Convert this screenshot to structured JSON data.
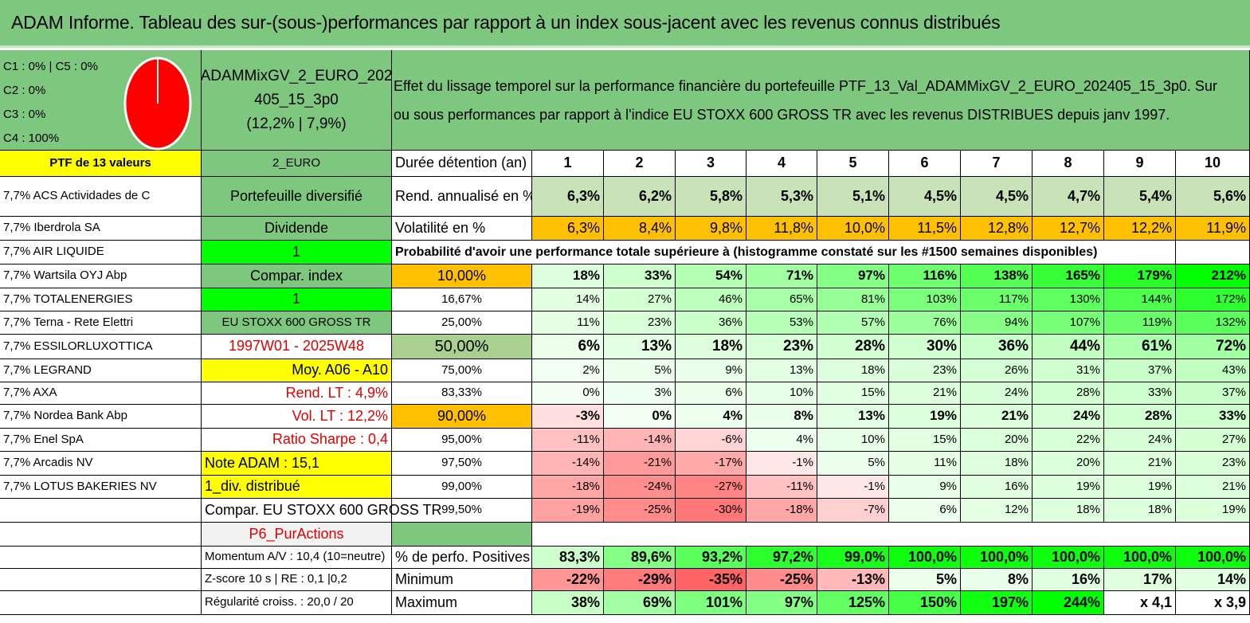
{
  "title": "ADAM Informe. Tableau des sur-(sous-)performances par rapport à un index sous-jacent avec les revenus connus distribués",
  "legend": [
    "C1 : 0% | C5 : 0%",
    "C2 : 0%",
    "C3 : 0%",
    "C4 : 100%"
  ],
  "portfolio": {
    "name1": "ADAMMixGV_2_EURO_202",
    "name2": "405_15_3p0",
    "perf": "(12,2% | 7,9%)"
  },
  "description": [
    "Effet du lissage temporel sur la performance financière du portefeuille PTF_13_Val_ADAMMixGV_2_EURO_202405_15_3p0. Sur",
    "ou sous performances par rapport à l'indice EU STOXX 600 GROSS TR avec les revenus DISTRIBUES depuis janv 1997."
  ],
  "colors": {
    "header_green": "#7dc77f",
    "yellow": "#ffff00",
    "bright_green": "#00ff00",
    "orange": "#ffc000",
    "red_text": "#e00000"
  },
  "holdings_header": "PTF de 13 valeurs",
  "holdings": [
    "7,7% ACS Actividades de C",
    "7,7% Iberdrola SA",
    "7,7% AIR LIQUIDE",
    "7,7% Wartsila OYJ Abp",
    "7,7% TOTALENERGIES",
    "7,7% Terna - Rete Elettri",
    "7,7% ESSILORLUXOTTICA",
    "7,7% LEGRAND",
    "7,7% AXA",
    "7,7% Nordea Bank Abp",
    "7,7% Enel SpA",
    "7,7% Arcadis NV",
    "7,7% LOTUS BAKERIES NV",
    "",
    "",
    "",
    "",
    ""
  ],
  "info": [
    "2_EURO",
    "Portefeuille diversifié",
    "Dividende",
    "1",
    "Compar. index",
    "1",
    "EU STOXX 600 GROSS TR",
    "1997W01 - 2025W48",
    "Moy. A06 - A10",
    "Rend. LT : 4,9%",
    "Vol. LT : 12,2%",
    "Ratio Sharpe : 0,4",
    "Note ADAM : 15,1",
    "1_div. distribué",
    "Compar. EU STOXX 600 GROSS TR",
    "P6_PurActions",
    "Momentum A/V : 10,4 (10=neutre)",
    "Z-score 10 s | RE : 0,1 |0,2",
    "Régularité croiss. : 20,0 / 20"
  ],
  "table": {
    "duration_label": "Durée détention (an)",
    "years": [
      "1",
      "2",
      "3",
      "4",
      "5",
      "6",
      "7",
      "8",
      "9",
      "10"
    ],
    "return_label": "Rend. annualisé en %",
    "returns": [
      "6,3%",
      "6,2%",
      "5,8%",
      "5,3%",
      "5,1%",
      "4,5%",
      "4,5%",
      "4,7%",
      "5,4%",
      "5,6%"
    ],
    "volatility_label": "Volatilité en %",
    "volatility": [
      "6,3%",
      "8,4%",
      "9,8%",
      "11,8%",
      "10,0%",
      "11,5%",
      "12,8%",
      "12,7%",
      "12,2%",
      "11,9%"
    ],
    "probability_title": "Probabilité d'avoir une performance totale supérieure à (histogramme constaté sur les #1500 semaines disponibles)",
    "quantiles": [
      {
        "p": "10,00%",
        "v": [
          "18%",
          "33%",
          "54%",
          "71%",
          "97%",
          "116%",
          "138%",
          "165%",
          "179%",
          "212%"
        ]
      },
      {
        "p": "16,67%",
        "v": [
          "14%",
          "27%",
          "46%",
          "65%",
          "81%",
          "103%",
          "117%",
          "130%",
          "144%",
          "172%"
        ]
      },
      {
        "p": "25,00%",
        "v": [
          "11%",
          "23%",
          "36%",
          "53%",
          "57%",
          "76%",
          "94%",
          "107%",
          "119%",
          "132%"
        ]
      },
      {
        "p": "50,00%",
        "v": [
          "6%",
          "13%",
          "18%",
          "23%",
          "28%",
          "30%",
          "36%",
          "44%",
          "61%",
          "72%"
        ]
      },
      {
        "p": "75,00%",
        "v": [
          "2%",
          "5%",
          "9%",
          "13%",
          "18%",
          "23%",
          "26%",
          "31%",
          "37%",
          "43%"
        ]
      },
      {
        "p": "83,33%",
        "v": [
          "0%",
          "3%",
          "6%",
          "10%",
          "15%",
          "21%",
          "24%",
          "28%",
          "33%",
          "37%"
        ]
      },
      {
        "p": "90,00%",
        "v": [
          "-3%",
          "0%",
          "4%",
          "8%",
          "13%",
          "19%",
          "21%",
          "24%",
          "28%",
          "33%"
        ]
      },
      {
        "p": "95,00%",
        "v": [
          "-11%",
          "-14%",
          "-6%",
          "4%",
          "10%",
          "15%",
          "20%",
          "22%",
          "24%",
          "27%"
        ]
      },
      {
        "p": "97,50%",
        "v": [
          "-14%",
          "-21%",
          "-17%",
          "-1%",
          "5%",
          "11%",
          "18%",
          "20%",
          "21%",
          "23%"
        ]
      },
      {
        "p": "99,00%",
        "v": [
          "-18%",
          "-24%",
          "-27%",
          "-11%",
          "-1%",
          "9%",
          "16%",
          "19%",
          "19%",
          "21%"
        ]
      },
      {
        "p": "99,50%",
        "v": [
          "-19%",
          "-25%",
          "-30%",
          "-18%",
          "-7%",
          "6%",
          "12%",
          "18%",
          "18%",
          "19%"
        ]
      }
    ],
    "positive_label": "% de perfo. Positives",
    "positive": [
      "83,3%",
      "89,6%",
      "93,2%",
      "97,2%",
      "99,0%",
      "100,0%",
      "100,0%",
      "100,0%",
      "100,0%",
      "100,0%"
    ],
    "minimum_label": "Minimum",
    "minimum": [
      "-22%",
      "-29%",
      "-35%",
      "-25%",
      "-13%",
      "5%",
      "8%",
      "16%",
      "17%",
      "14%"
    ],
    "maximum_label": "Maximum",
    "maximum": [
      "38%",
      "69%",
      "101%",
      "97%",
      "125%",
      "150%",
      "197%",
      "244%",
      "x 4,1",
      "x 3,9"
    ]
  }
}
